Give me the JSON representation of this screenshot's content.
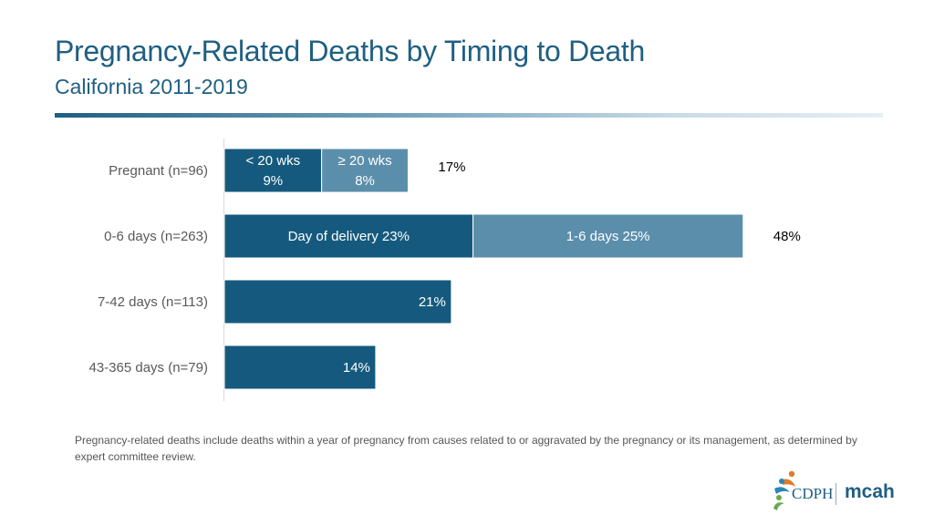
{
  "header": {
    "title": "Pregnancy-Related Deaths by Timing to Death",
    "subtitle": "California 2011-2019"
  },
  "chart_data": {
    "type": "bar",
    "orientation": "horizontal",
    "stacked": true,
    "title": "Pregnancy-Related Deaths by Timing to Death",
    "subtitle": "California 2011-2019",
    "xlabel": "",
    "ylabel": "",
    "unit": "%",
    "grid": false,
    "categories": [
      "Pregnant (n=96)",
      "0-6 days (n=263)",
      "7-42 days (n=113)",
      "43-365 days (n=79)"
    ],
    "rows": [
      {
        "label": "Pregnant (n=96)",
        "total_label": "17%",
        "segments": [
          {
            "label_lines": [
              "< 20 wks",
              "9%"
            ],
            "value": 9,
            "color": "#155a7e"
          },
          {
            "label_lines": [
              "≥ 20 wks",
              "8%"
            ],
            "value": 8,
            "color": "#5b8eab"
          }
        ]
      },
      {
        "label": "0-6 days (n=263)",
        "total_label": "48%",
        "segments": [
          {
            "label_lines": [
              "Day of delivery  23%"
            ],
            "value": 23,
            "color": "#155a7e"
          },
          {
            "label_lines": [
              "1-6 days  25%"
            ],
            "value": 25,
            "color": "#5b8eab"
          }
        ]
      },
      {
        "label": "7-42 days (n=113)",
        "total_label": "",
        "segments": [
          {
            "label_lines": [
              "21%"
            ],
            "value": 21,
            "color": "#155a7e",
            "label_align": "end"
          }
        ]
      },
      {
        "label": "43-365 days (n=79)",
        "total_label": "",
        "segments": [
          {
            "label_lines": [
              "14%"
            ],
            "value": 14,
            "color": "#155a7e",
            "label_align": "end"
          }
        ]
      }
    ]
  },
  "footnote": "Pregnancy-related deaths include deaths within a year of pregnancy from causes related to or aggravated by the pregnancy or its management, as determined by expert committee review.",
  "logo": {
    "cdph": "CDPH",
    "mcah": "mcah"
  },
  "colors": {
    "title": "#1f5f82",
    "dark_segment": "#155a7e",
    "light_segment": "#5b8eab"
  }
}
